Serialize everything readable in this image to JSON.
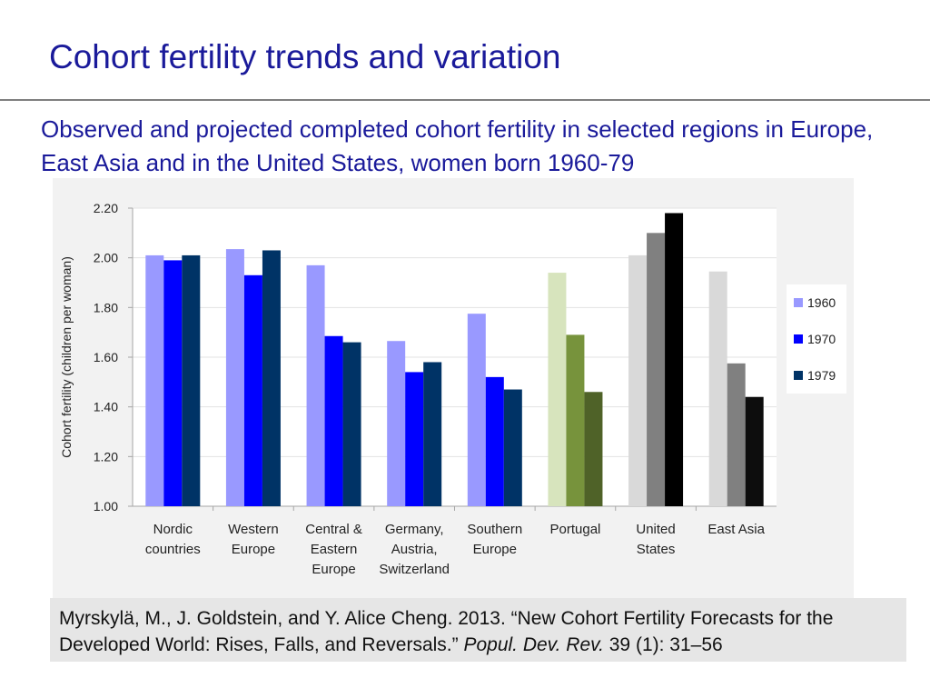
{
  "slide": {
    "title": "Cohort fertility trends and variation",
    "subtitle": "Observed and projected completed cohort fertility in selected regions in Europe, East Asia and in the United States, women born 1960-79"
  },
  "citation": {
    "text_before": "Myrskylä, M., J. Goldstein, and Y. Alice Cheng. 2013. “New Cohort Fertility Forecasts for the Developed World: Rises, Falls, and Reversals.” ",
    "journal": "Popul. Dev. Rev.",
    "text_after": " 39 (1): 31–56"
  },
  "chart_data": {
    "type": "bar",
    "ylabel": "Cohort fertility (children per woman)",
    "xlabel": "",
    "ylim": [
      1.0,
      2.2
    ],
    "yticks": [
      "1.00",
      "1.20",
      "1.40",
      "1.60",
      "1.80",
      "2.00",
      "2.20"
    ],
    "grid": true,
    "legend_position": "right",
    "categories": [
      [
        "Nordic",
        "countries"
      ],
      [
        "Western",
        "Europe"
      ],
      [
        "Central &",
        "Eastern",
        "Europe"
      ],
      [
        "Germany,",
        "Austria,",
        "Switzerland"
      ],
      [
        "Southern",
        "Europe"
      ],
      [
        "Portugal"
      ],
      [
        "United",
        "States"
      ],
      [
        "East Asia"
      ]
    ],
    "series": [
      {
        "name": "1960",
        "values": [
          2.01,
          2.035,
          1.97,
          1.665,
          1.775,
          1.94,
          2.01,
          1.945
        ],
        "color": "#9999ff"
      },
      {
        "name": "1970",
        "values": [
          1.99,
          1.93,
          1.685,
          1.54,
          1.52,
          1.69,
          2.1,
          1.575
        ],
        "color": "#0000ff"
      },
      {
        "name": "1979",
        "values": [
          2.01,
          2.03,
          1.66,
          1.58,
          1.47,
          1.46,
          2.18,
          1.44
        ],
        "color": "#003366"
      }
    ],
    "category_colors": {
      "5": [
        "#d7e4bd",
        "#77933c",
        "#4f6228"
      ],
      "6": [
        "#d9d9d9",
        "#808080",
        "#000000"
      ],
      "7": [
        "#d9d9d9",
        "#808080",
        "#0d0d0d"
      ]
    }
  }
}
